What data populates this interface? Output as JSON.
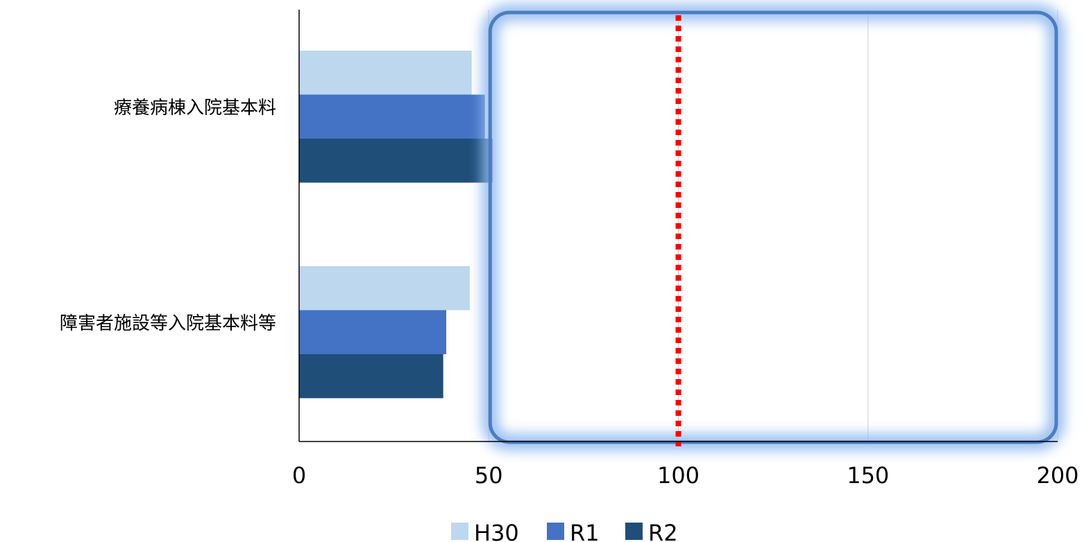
{
  "chart_data": {
    "type": "bar",
    "orientation": "horizontal",
    "categories": [
      "療養病棟入院基本料",
      "障害者施設等入院基本料等"
    ],
    "series": [
      {
        "name": "H30",
        "color": "#BDD7EE",
        "values": [
          45.5,
          45
        ]
      },
      {
        "name": "R1",
        "color": "#4472C4",
        "values": [
          49,
          38.8
        ]
      },
      {
        "name": "R2",
        "color": "#1F4E79",
        "values": [
          51,
          38
        ]
      }
    ],
    "xlim": [
      0,
      200
    ],
    "xticks": [
      "0",
      "50",
      "100",
      "150",
      "200"
    ],
    "xlabel": "",
    "ylabel": "",
    "title": "",
    "grid": true,
    "legend_position": "bottom",
    "reference_line": {
      "value": 100,
      "style": "dotted",
      "color": "#FF0000"
    },
    "highlight_box": {
      "from": 50,
      "to": 200,
      "color": "#4A7EC0"
    }
  }
}
